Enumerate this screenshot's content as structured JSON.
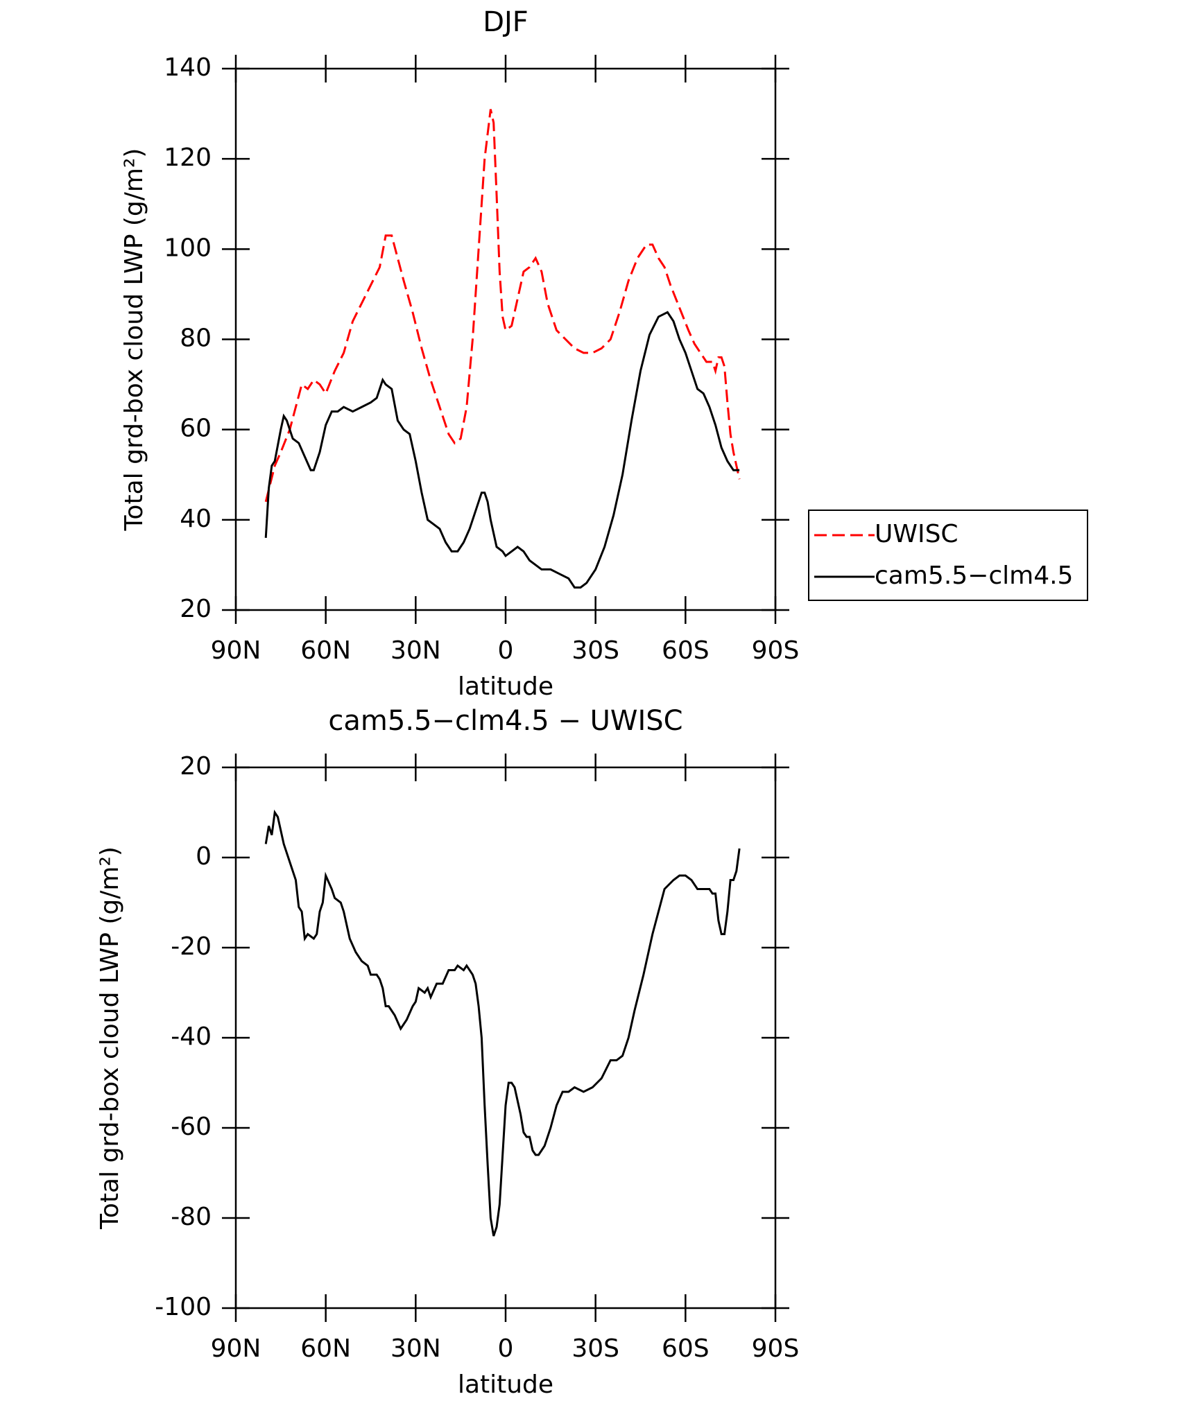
{
  "chart_data": [
    {
      "type": "line",
      "title": "DJF",
      "x_label": "latitude",
      "y_label": "Total grd-box cloud LWP (g/m²)",
      "xlim": [
        90,
        -90
      ],
      "xticks": [
        {
          "value": 90,
          "label": "90N"
        },
        {
          "value": 60,
          "label": "60N"
        },
        {
          "value": 30,
          "label": "30N"
        },
        0,
        {
          "value": -30,
          "label": "30S"
        },
        {
          "value": -60,
          "label": "60S"
        },
        {
          "value": -90,
          "label": "90S"
        }
      ],
      "ylim": [
        20,
        140
      ],
      "yticks": [
        20,
        40,
        60,
        80,
        100,
        120,
        140
      ],
      "legend": "right",
      "series": [
        {
          "name": "UWISC",
          "color": "#ff0000",
          "dash": true,
          "x": [
            80,
            77,
            75,
            72,
            70,
            68,
            66,
            64,
            62,
            60,
            57,
            54,
            51,
            48,
            45,
            42,
            40,
            38,
            36,
            34,
            31,
            28,
            25,
            22,
            19,
            17,
            15,
            13,
            11,
            9,
            7,
            5,
            4,
            3,
            2,
            1,
            0,
            -2,
            -4,
            -6,
            -8,
            -10,
            -12,
            -14,
            -17,
            -20,
            -23,
            -26,
            -29,
            -32,
            -35,
            -38,
            -41,
            -44,
            -47,
            -49,
            -51,
            -53,
            -55,
            -58,
            -61,
            -63,
            -65,
            -67,
            -69,
            -70,
            -71,
            -72,
            -73,
            -74,
            -75,
            -76,
            -77,
            -78
          ],
          "values": [
            44,
            52,
            55,
            60,
            65,
            70,
            69,
            71,
            70,
            68,
            73,
            77,
            84,
            88,
            92,
            96,
            103,
            103,
            98,
            93,
            86,
            78,
            71,
            65,
            59,
            57,
            58,
            65,
            80,
            100,
            120,
            131,
            128,
            112,
            95,
            85,
            82,
            83,
            89,
            95,
            96,
            98,
            95,
            88,
            82,
            80,
            78,
            77,
            77,
            78,
            80,
            86,
            93,
            98,
            101,
            101,
            98,
            96,
            92,
            87,
            82,
            79,
            77,
            75,
            75,
            73,
            76,
            76,
            74,
            66,
            59,
            55,
            52,
            49
          ]
        },
        {
          "name": "cam5.5−clm4.5",
          "color": "#000000",
          "dash": false,
          "x": [
            80,
            79,
            78,
            77,
            75,
            74,
            73,
            71,
            69,
            67,
            65,
            64,
            62,
            60,
            58,
            56,
            54,
            51,
            48,
            45,
            43,
            41,
            40,
            38,
            36,
            34,
            32,
            30,
            28,
            26,
            24,
            22,
            20,
            18,
            16,
            14,
            12,
            10,
            8,
            7,
            6,
            5,
            3,
            1,
            0,
            -2,
            -4,
            -6,
            -8,
            -10,
            -12,
            -15,
            -18,
            -21,
            -23,
            -25,
            -27,
            -30,
            -33,
            -36,
            -39,
            -42,
            -45,
            -48,
            -51,
            -54,
            -56,
            -58,
            -60,
            -62,
            -64,
            -66,
            -68,
            -70,
            -72,
            -74,
            -76,
            -78
          ],
          "values": [
            36,
            47,
            52,
            53,
            60,
            63,
            62,
            58,
            57,
            54,
            51,
            51,
            55,
            61,
            64,
            64,
            65,
            64,
            65,
            66,
            67,
            71,
            70,
            69,
            62,
            60,
            59,
            53,
            46,
            40,
            39,
            38,
            35,
            33,
            33,
            35,
            38,
            42,
            46,
            46,
            44,
            40,
            34,
            33,
            32,
            33,
            34,
            33,
            31,
            30,
            29,
            29,
            28,
            27,
            25,
            25,
            26,
            29,
            34,
            41,
            50,
            62,
            73,
            81,
            85,
            86,
            84,
            80,
            77,
            73,
            69,
            68,
            65,
            61,
            56,
            53,
            51,
            51
          ]
        }
      ]
    },
    {
      "type": "line",
      "title": "cam5.5−clm4.5 − UWISC",
      "x_label": "latitude",
      "y_label": "Total grd-box cloud LWP (g/m²)",
      "xlim": [
        90,
        -90
      ],
      "xticks": [
        {
          "value": 90,
          "label": "90N"
        },
        {
          "value": 60,
          "label": "60N"
        },
        {
          "value": 30,
          "label": "30N"
        },
        0,
        {
          "value": -30,
          "label": "30S"
        },
        {
          "value": -60,
          "label": "60S"
        },
        {
          "value": -90,
          "label": "90S"
        }
      ],
      "ylim": [
        -100,
        20
      ],
      "yticks": [
        -100,
        -80,
        -60,
        -40,
        -20,
        0,
        20
      ],
      "series": [
        {
          "color": "#000000",
          "dash": false,
          "x": [
            80,
            79,
            78,
            77,
            76,
            74,
            72,
            70,
            69,
            68,
            67,
            66,
            64,
            63,
            62,
            61,
            60,
            58,
            57,
            55,
            54,
            52,
            50,
            48,
            46,
            45,
            43,
            42,
            41,
            40,
            39,
            37,
            35,
            33,
            31,
            30,
            29,
            27,
            26,
            25,
            23,
            21,
            19,
            17,
            16,
            14,
            13,
            11,
            10,
            9,
            8,
            7,
            6,
            5,
            4,
            3,
            2,
            1,
            0,
            -1,
            -2,
            -3,
            -4,
            -5,
            -6,
            -7,
            -8,
            -9,
            -10,
            -11,
            -12,
            -13,
            -15,
            -17,
            -19,
            -21,
            -23,
            -26,
            -29,
            -32,
            -35,
            -37,
            -39,
            -41,
            -43,
            -46,
            -49,
            -51,
            -53,
            -56,
            -58,
            -60,
            -62,
            -64,
            -66,
            -68,
            -69,
            -70,
            -71,
            -72,
            -73,
            -74,
            -75,
            -76,
            -77,
            -78
          ],
          "values": [
            3,
            7,
            5,
            10,
            9,
            3,
            -1,
            -5,
            -11,
            -12,
            -18,
            -17,
            -18,
            -17,
            -12,
            -10,
            -4,
            -7,
            -9,
            -10,
            -12,
            -18,
            -21,
            -23,
            -24,
            -26,
            -26,
            -27,
            -29,
            -33,
            -33,
            -35,
            -38,
            -36,
            -33,
            -32,
            -29,
            -30,
            -29,
            -31,
            -28,
            -28,
            -25,
            -25,
            -24,
            -25,
            -24,
            -26,
            -28,
            -33,
            -40,
            -55,
            -68,
            -80,
            -84,
            -82,
            -77,
            -66,
            -55,
            -50,
            -50,
            -51,
            -54,
            -57,
            -61,
            -62,
            -62,
            -65,
            -66,
            -66,
            -65,
            -64,
            -60,
            -55,
            -52,
            -52,
            -51,
            -52,
            -51,
            -49,
            -45,
            -45,
            -44,
            -40,
            -34,
            -26,
            -17,
            -12,
            -7,
            -5,
            -4,
            -4,
            -5,
            -7,
            -7,
            -7,
            -8,
            -8,
            -14,
            -17,
            -17,
            -12,
            -5,
            -5,
            -3,
            2
          ]
        }
      ]
    }
  ]
}
